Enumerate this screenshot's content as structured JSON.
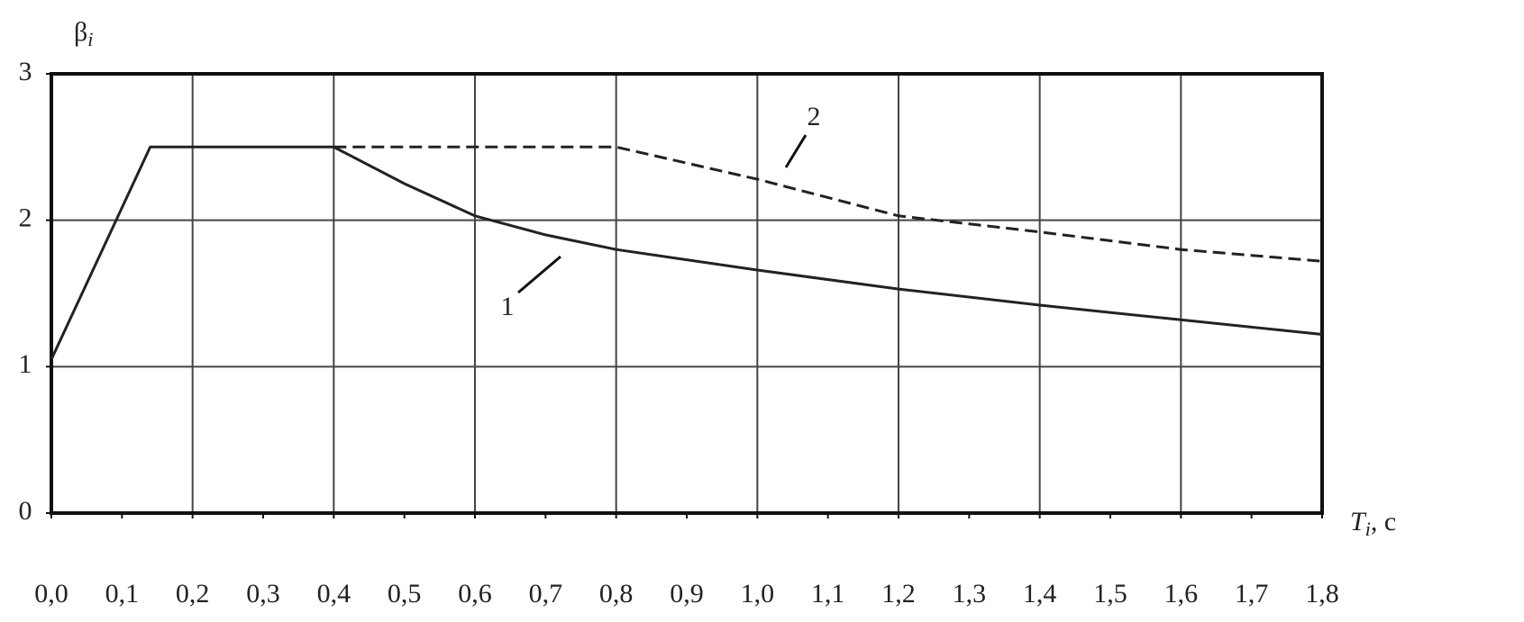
{
  "chart_data": {
    "type": "line",
    "y_label": {
      "symbol": "β",
      "subscript": "i"
    },
    "x_label": {
      "symbol": "T",
      "subscript": "i",
      "unit": ", с"
    },
    "xlim": [
      0,
      1.8
    ],
    "ylim": [
      0,
      3
    ],
    "xticks": [
      {
        "value": 0,
        "label": "0,0"
      },
      {
        "value": 0.1,
        "label": "0,1"
      },
      {
        "value": 0.2,
        "label": "0,2"
      },
      {
        "value": 0.3,
        "label": "0,3"
      },
      {
        "value": 0.4,
        "label": "0,4"
      },
      {
        "value": 0.5,
        "label": "0,5"
      },
      {
        "value": 0.6,
        "label": "0,6"
      },
      {
        "value": 0.7,
        "label": "0,7"
      },
      {
        "value": 0.8,
        "label": "0,8"
      },
      {
        "value": 0.9,
        "label": "0,9"
      },
      {
        "value": 1,
        "label": "1,0"
      },
      {
        "value": 1.1,
        "label": "1,1"
      },
      {
        "value": 1.2,
        "label": "1,2"
      },
      {
        "value": 1.3,
        "label": "1,3"
      },
      {
        "value": 1.4,
        "label": "1,4"
      },
      {
        "value": 1.5,
        "label": "1,5"
      },
      {
        "value": 1.6,
        "label": "1,6"
      },
      {
        "value": 1.7,
        "label": "1,7"
      },
      {
        "value": 1.8,
        "label": "1,8"
      }
    ],
    "xgrid": [
      0.2,
      0.4,
      0.6,
      0.8,
      1,
      1.2,
      1.4,
      1.6
    ],
    "yticks": [
      0,
      1,
      2,
      3
    ],
    "ygrid": [
      1,
      2
    ],
    "series": [
      {
        "name": "1",
        "color": "#222222",
        "dash": false,
        "x": [
          0,
          0.14,
          0.4,
          0.5,
          0.6,
          0.7,
          0.8,
          0.9,
          1.0,
          1.2,
          1.4,
          1.6,
          1.8
        ],
        "values": [
          1.05,
          2.5,
          2.5,
          2.25,
          2.03,
          1.9,
          1.8,
          1.73,
          1.66,
          1.53,
          1.42,
          1.32,
          1.22
        ]
      },
      {
        "name": "2",
        "color": "#222222",
        "dash": true,
        "x": [
          0.4,
          0.8,
          1.0,
          1.2,
          1.4,
          1.6,
          1.8
        ],
        "values": [
          2.5,
          2.5,
          2.28,
          2.03,
          1.92,
          1.8,
          1.72
        ]
      }
    ]
  }
}
